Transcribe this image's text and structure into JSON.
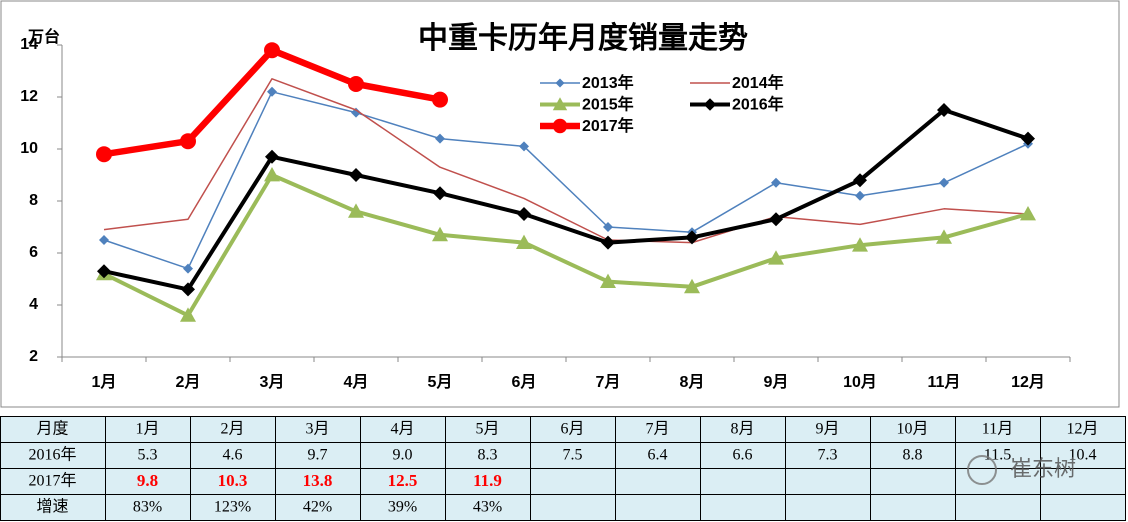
{
  "chart_data": {
    "type": "line",
    "title": "中重卡历年月度销量走势",
    "y_label": "万台",
    "categories": [
      "1月",
      "2月",
      "3月",
      "4月",
      "5月",
      "6月",
      "7月",
      "8月",
      "9月",
      "10月",
      "11月",
      "12月"
    ],
    "ylim": [
      2,
      14
    ],
    "yticks": [
      2,
      4,
      6,
      8,
      10,
      12,
      14
    ],
    "series": [
      {
        "name": "2013年",
        "color": "#4f81bd",
        "marker": "diamond",
        "values": [
          6.5,
          5.4,
          12.2,
          11.4,
          10.4,
          10.1,
          7.0,
          6.8,
          8.7,
          8.2,
          8.7,
          10.2
        ]
      },
      {
        "name": "2014年",
        "color": "#c0504d",
        "marker": "none",
        "values": [
          6.9,
          7.3,
          12.7,
          11.5,
          9.3,
          8.1,
          6.5,
          6.4,
          7.4,
          7.1,
          7.7,
          7.5
        ]
      },
      {
        "name": "2015年",
        "color": "#9bbb59",
        "marker": "triangle",
        "values": [
          5.2,
          3.6,
          9.0,
          7.6,
          6.7,
          6.4,
          4.9,
          4.7,
          5.8,
          6.3,
          6.6,
          7.5
        ]
      },
      {
        "name": "2016年",
        "color": "#000000",
        "marker": "diamond",
        "values": [
          5.3,
          4.6,
          9.7,
          9.0,
          8.3,
          7.5,
          6.4,
          6.6,
          7.3,
          8.8,
          11.5,
          10.4
        ]
      },
      {
        "name": "2017年",
        "color": "#ff0000",
        "marker": "circle",
        "values": [
          9.8,
          10.3,
          13.8,
          12.5,
          11.9,
          null,
          null,
          null,
          null,
          null,
          null,
          null
        ]
      }
    ]
  },
  "table": {
    "header": [
      "月度",
      "1月",
      "2月",
      "3月",
      "4月",
      "5月",
      "6月",
      "7月",
      "8月",
      "9月",
      "10月",
      "11月",
      "12月"
    ],
    "rows": [
      [
        "2016年",
        "5.3",
        "4.6",
        "9.7",
        "9.0",
        "8.3",
        "7.5",
        "6.4",
        "6.6",
        "7.3",
        "8.8",
        "11.5",
        "10.4"
      ],
      [
        "2017年",
        "9.8",
        "10.3",
        "13.8",
        "12.5",
        "11.9",
        "",
        "",
        "",
        "",
        "",
        "",
        ""
      ],
      [
        "增速",
        "83%",
        "123%",
        "42%",
        "39%",
        "43%",
        "",
        "",
        "",
        "",
        "",
        "",
        ""
      ]
    ]
  },
  "watermark": "崔东树"
}
